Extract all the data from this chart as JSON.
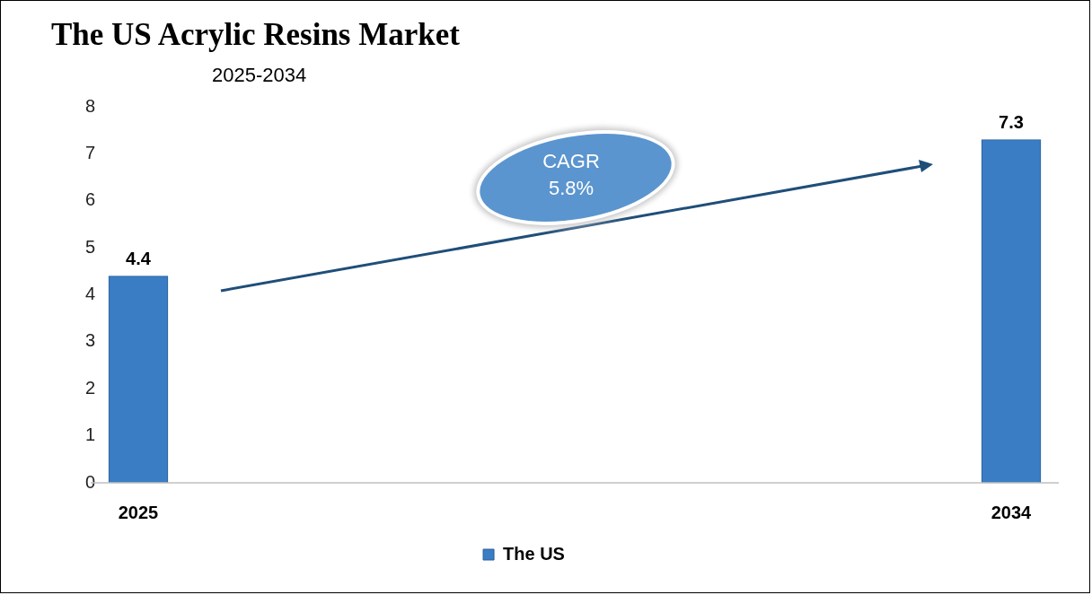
{
  "chart_data": {
    "type": "bar",
    "title": "The US Acrylic Resins Market",
    "subtitle": "2025-2034",
    "categories": [
      "2025",
      "2034"
    ],
    "series": [
      {
        "name": "The US",
        "color": "#3a7dc4",
        "values": [
          4.4,
          7.3
        ]
      }
    ],
    "ylim": [
      0,
      8
    ],
    "yticks": [
      0,
      1,
      2,
      3,
      4,
      5,
      6,
      7,
      8
    ],
    "grid": false,
    "legend": "bottom",
    "data_labels": true,
    "annotations": [
      "CAGR 5.8%"
    ]
  }
}
